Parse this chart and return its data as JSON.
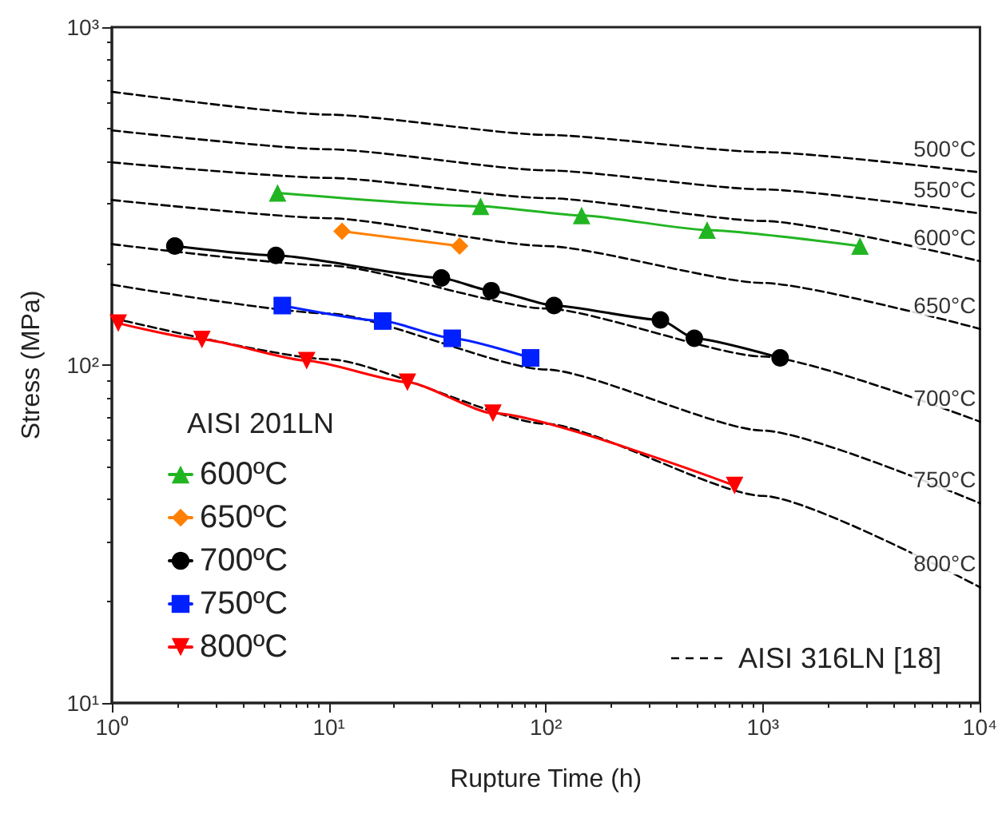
{
  "chart_data": {
    "type": "line",
    "xlabel": "Rupture Time (h)",
    "ylabel": "Stress (MPa)",
    "log": "xy",
    "xlim": [
      1,
      10000
    ],
    "ylim": [
      10,
      1000
    ],
    "xticks": [
      {
        "value": 1,
        "label": "10⁰"
      },
      {
        "value": 10,
        "label": "10¹"
      },
      {
        "value": 100,
        "label": "10²"
      },
      {
        "value": 1000,
        "label": "10³"
      },
      {
        "value": 10000,
        "label": "10⁴"
      }
    ],
    "yticks": [
      {
        "value": 10,
        "label": "10¹"
      },
      {
        "value": 100,
        "label": "10²"
      },
      {
        "value": 1000,
        "label": "10³"
      }
    ],
    "grid": false,
    "legend": "left",
    "legend_title": "AISI 201LN",
    "series": [
      {
        "name": "600ºC",
        "color": "#22b522",
        "marker": "triangle",
        "line_style": "solid",
        "x": [
          5.8,
          50,
          146,
          553,
          2800
        ],
        "values": [
          323,
          295,
          277,
          251,
          225
        ]
      },
      {
        "name": "650ºC",
        "color": "#ff8000",
        "marker": "diamond",
        "line_style": "solid",
        "x": [
          11.5,
          40
        ],
        "values": [
          249,
          225
        ]
      },
      {
        "name": "700ºC",
        "color": "#000000",
        "marker": "circle",
        "line_style": "solid",
        "x": [
          1.95,
          5.7,
          33,
          56,
          109,
          337,
          483,
          1200
        ],
        "values": [
          225,
          211,
          181,
          166,
          150,
          136,
          120,
          105
        ]
      },
      {
        "name": "750ºC",
        "color": "#0020ff",
        "marker": "square",
        "line_style": "solid",
        "x": [
          6.1,
          17.7,
          37,
          85
        ],
        "values": [
          150,
          135,
          120,
          105
        ]
      },
      {
        "name": "800ºC",
        "color": "#ff0000",
        "marker": "triangle-down",
        "line_style": "solid",
        "x": [
          1.07,
          2.6,
          7.9,
          23,
          57,
          740
        ],
        "values": [
          133,
          119,
          103,
          89,
          72,
          44
        ]
      },
      {
        "name": "500°C",
        "color": "#000000",
        "marker": "none",
        "line_style": "dashed",
        "x": [
          1,
          10,
          100,
          1000,
          10000
        ],
        "values": [
          644,
          551,
          480,
          427,
          372
        ]
      },
      {
        "name": "550°C",
        "color": "#000000",
        "marker": "none",
        "line_style": "dashed",
        "x": [
          1,
          10,
          100,
          1000,
          10000
        ],
        "values": [
          495,
          435,
          377,
          331,
          281
        ]
      },
      {
        "name": "600°C",
        "color": "#000000",
        "marker": "none",
        "line_style": "dashed",
        "x": [
          1,
          10,
          100,
          1000,
          10000
        ],
        "values": [
          398,
          358,
          312,
          267,
          203
        ]
      },
      {
        "name": "650°C",
        "color": "#000000",
        "marker": "none",
        "line_style": "dashed",
        "x": [
          1,
          10,
          100,
          1000,
          10000
        ],
        "values": [
          308,
          272,
          225,
          175,
          128
        ]
      },
      {
        "name": "700°C",
        "color": "#000000",
        "marker": "none",
        "line_style": "dashed",
        "x": [
          1,
          10,
          100,
          1000,
          10000
        ],
        "values": [
          228,
          197,
          147,
          106,
          68
        ]
      },
      {
        "name": "750°C",
        "color": "#000000",
        "marker": "none",
        "line_style": "dashed",
        "x": [
          1,
          10,
          100,
          1000,
          10000
        ],
        "values": [
          173,
          142,
          97,
          64,
          39
        ]
      },
      {
        "name": "800°C",
        "color": "#000000",
        "marker": "none",
        "line_style": "dashed",
        "x": [
          1,
          10,
          100,
          1000,
          10000
        ],
        "values": [
          138,
          104,
          67,
          41,
          22
        ]
      }
    ],
    "annotations": [
      "AISI 316LN [18]"
    ]
  }
}
